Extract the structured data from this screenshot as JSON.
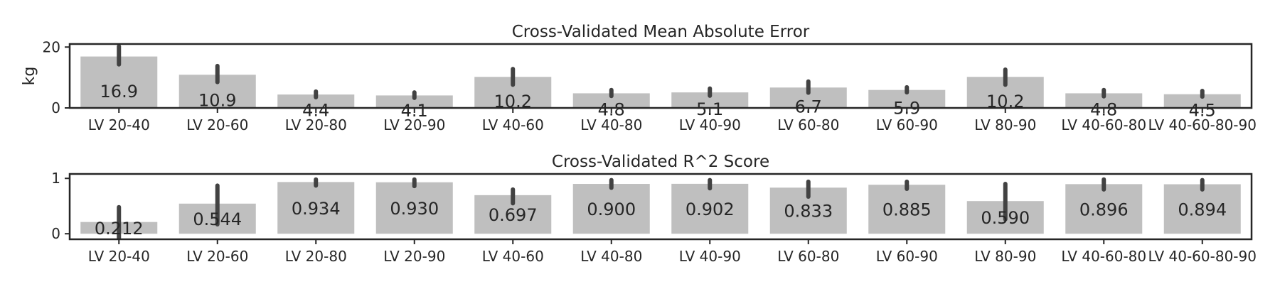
{
  "chart_data": [
    {
      "type": "bar",
      "title": "Cross-Validated Mean Absolute Error",
      "xlabel": "",
      "ylabel": "kg",
      "ylim": [
        0,
        21
      ],
      "yticks": [
        0,
        20
      ],
      "ytick_labels": [
        "0",
        "20"
      ],
      "categories": [
        "LV 20-40",
        "LV 20-60",
        "LV 20-80",
        "LV 20-90",
        "LV 40-60",
        "LV 40-80",
        "LV 40-90",
        "LV 60-80",
        "LV 60-90",
        "LV 80-90",
        "LV 40-60-80",
        "LV 40-60-80-90"
      ],
      "values": [
        16.9,
        10.9,
        4.4,
        4.1,
        10.2,
        4.8,
        5.1,
        6.7,
        5.9,
        10.2,
        4.8,
        4.5
      ],
      "value_labels": [
        "16.9",
        "10.9",
        "4.4",
        "4.1",
        "10.2",
        "4.8",
        "5.1",
        "6.7",
        "5.9",
        "10.2",
        "4.8",
        "4.5"
      ],
      "error_low": [
        14.3,
        8.5,
        3.5,
        3.3,
        7.6,
        3.9,
        4.0,
        5.0,
        5.1,
        7.6,
        3.8,
        3.7
      ],
      "error_high": [
        20.2,
        13.8,
        5.4,
        5.1,
        12.8,
        5.9,
        6.4,
        8.7,
        6.8,
        12.6,
        5.9,
        5.6
      ],
      "grid": false,
      "colors": {
        "bar": "#bfbfbf",
        "error": "#424242",
        "axis": "#262626"
      }
    },
    {
      "type": "bar",
      "title": "Cross-Validated R^2 Score",
      "xlabel": "",
      "ylabel": "",
      "ylim": [
        -0.1,
        1.08
      ],
      "yticks": [
        0,
        1
      ],
      "ytick_labels": [
        "0",
        "1"
      ],
      "categories": [
        "LV 20-40",
        "LV 20-60",
        "LV 20-80",
        "LV 20-90",
        "LV 40-60",
        "LV 40-80",
        "LV 40-90",
        "LV 60-80",
        "LV 60-90",
        "LV 80-90",
        "LV 40-60-80",
        "LV 40-60-80-90"
      ],
      "values": [
        0.212,
        0.544,
        0.934,
        0.93,
        0.697,
        0.9,
        0.902,
        0.833,
        0.885,
        0.59,
        0.896,
        0.894
      ],
      "value_labels": [
        "0.212",
        "0.544",
        "0.934",
        "0.930",
        "0.697",
        "0.900",
        "0.902",
        "0.833",
        "0.885",
        "0.590",
        "0.896",
        "0.894"
      ],
      "error_low": [
        -0.08,
        0.17,
        0.87,
        0.86,
        0.55,
        0.83,
        0.82,
        0.67,
        0.81,
        0.26,
        0.8,
        0.8
      ],
      "error_high": [
        0.48,
        0.87,
        0.98,
        0.98,
        0.8,
        0.97,
        0.97,
        0.94,
        0.94,
        0.9,
        0.98,
        0.97
      ],
      "grid": false,
      "colors": {
        "bar": "#bfbfbf",
        "error": "#424242",
        "axis": "#262626"
      }
    }
  ]
}
